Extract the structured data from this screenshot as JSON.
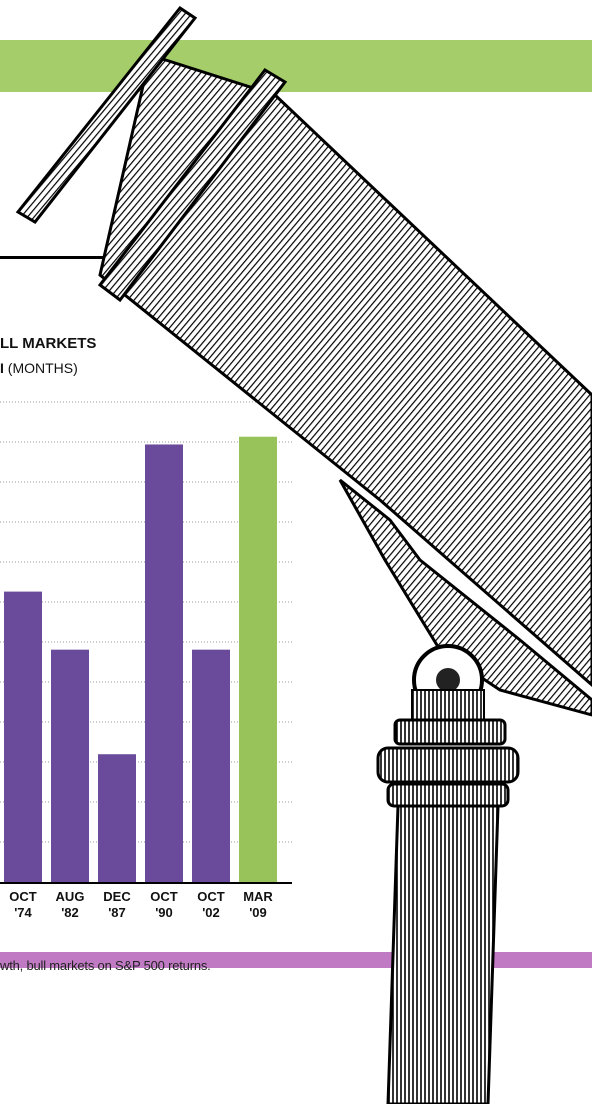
{
  "header": {
    "title": "LL MARKETS",
    "subtitle_strong": "I",
    "subtitle_rest": " (MONTHS)"
  },
  "footnote": "wth, bull markets on S&P 500 returns.",
  "colors": {
    "top_band": "#a5cd6a",
    "bottom_band": "#c07ac4",
    "bar_default": "#6a4a9a",
    "bar_highlight": "#97c35a"
  },
  "chart_data": {
    "type": "bar",
    "categories": [
      [
        "OCT",
        "'74"
      ],
      [
        "AUG",
        "'82"
      ],
      [
        "DEC",
        "'87"
      ],
      [
        "OCT",
        "'90"
      ],
      [
        "OCT",
        "'02"
      ],
      [
        "MAR",
        "'09"
      ]
    ],
    "values": [
      75,
      60,
      33,
      113,
      60,
      115
    ],
    "highlight_index": 5,
    "ylim": [
      0,
      125
    ],
    "grid": true
  }
}
